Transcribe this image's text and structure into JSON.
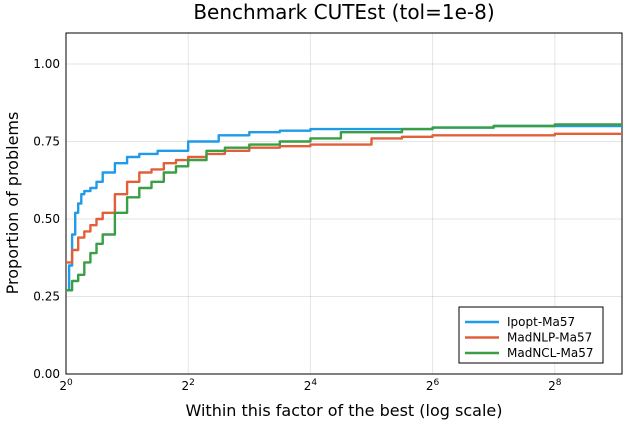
{
  "chart_data": {
    "type": "line",
    "step": true,
    "title": "Benchmark CUTEst (tol=1e-8)",
    "xlabel": "Within this factor of the best (log scale)",
    "ylabel": "Proportion of problems",
    "xscale": "log2",
    "xlim_log2": [
      0,
      9.1
    ],
    "ylim": [
      0,
      1.1
    ],
    "grid": true,
    "legend_position": "bottom-right",
    "xticks": [
      {
        "log2": 0,
        "base": "2",
        "exp": "0"
      },
      {
        "log2": 2,
        "base": "2",
        "exp": "2"
      },
      {
        "log2": 4,
        "base": "2",
        "exp": "4"
      },
      {
        "log2": 6,
        "base": "2",
        "exp": "6"
      },
      {
        "log2": 8,
        "base": "2",
        "exp": "8"
      }
    ],
    "yticks": [
      {
        "value": 0,
        "label": "0.00"
      },
      {
        "value": 0.25,
        "label": "0.25"
      },
      {
        "value": 0.5,
        "label": "0.50"
      },
      {
        "value": 0.75,
        "label": "0.75"
      },
      {
        "value": 1.0,
        "label": "1.00"
      }
    ],
    "series": [
      {
        "name": "Ipopt-Ma57",
        "color": "#1f9be8",
        "x_log2": [
          0,
          0.05,
          0.1,
          0.15,
          0.2,
          0.25,
          0.3,
          0.4,
          0.5,
          0.6,
          0.8,
          1.0,
          1.2,
          1.5,
          2.0,
          2.5,
          3.0,
          3.5,
          4.0,
          5.0,
          6.0,
          7.0,
          8.0,
          9.1
        ],
        "values": [
          0.27,
          0.35,
          0.45,
          0.52,
          0.55,
          0.58,
          0.59,
          0.6,
          0.62,
          0.65,
          0.68,
          0.7,
          0.71,
          0.72,
          0.75,
          0.77,
          0.78,
          0.785,
          0.79,
          0.79,
          0.795,
          0.8,
          0.8,
          0.8
        ]
      },
      {
        "name": "MadNLP-Ma57",
        "color": "#e1603a",
        "x_log2": [
          0,
          0.1,
          0.2,
          0.3,
          0.4,
          0.5,
          0.6,
          0.8,
          1.0,
          1.2,
          1.4,
          1.6,
          1.8,
          2.0,
          2.3,
          2.6,
          3.0,
          3.5,
          4.0,
          4.5,
          5.0,
          5.5,
          6.0,
          7.0,
          8.0,
          9.1
        ],
        "values": [
          0.36,
          0.4,
          0.44,
          0.46,
          0.48,
          0.5,
          0.52,
          0.58,
          0.62,
          0.65,
          0.66,
          0.68,
          0.69,
          0.7,
          0.71,
          0.72,
          0.73,
          0.735,
          0.74,
          0.74,
          0.76,
          0.765,
          0.77,
          0.77,
          0.775,
          0.775
        ]
      },
      {
        "name": "MadNCL-Ma57",
        "color": "#3a9e44",
        "x_log2": [
          0,
          0.1,
          0.2,
          0.3,
          0.4,
          0.5,
          0.6,
          0.8,
          1.0,
          1.2,
          1.4,
          1.6,
          1.8,
          2.0,
          2.3,
          2.6,
          3.0,
          3.5,
          4.0,
          4.5,
          5.0,
          5.5,
          6.0,
          7.0,
          8.0,
          9.1
        ],
        "values": [
          0.27,
          0.3,
          0.32,
          0.36,
          0.39,
          0.42,
          0.45,
          0.52,
          0.57,
          0.6,
          0.62,
          0.65,
          0.67,
          0.69,
          0.72,
          0.73,
          0.74,
          0.75,
          0.76,
          0.78,
          0.78,
          0.79,
          0.795,
          0.8,
          0.805,
          0.805
        ]
      }
    ]
  }
}
